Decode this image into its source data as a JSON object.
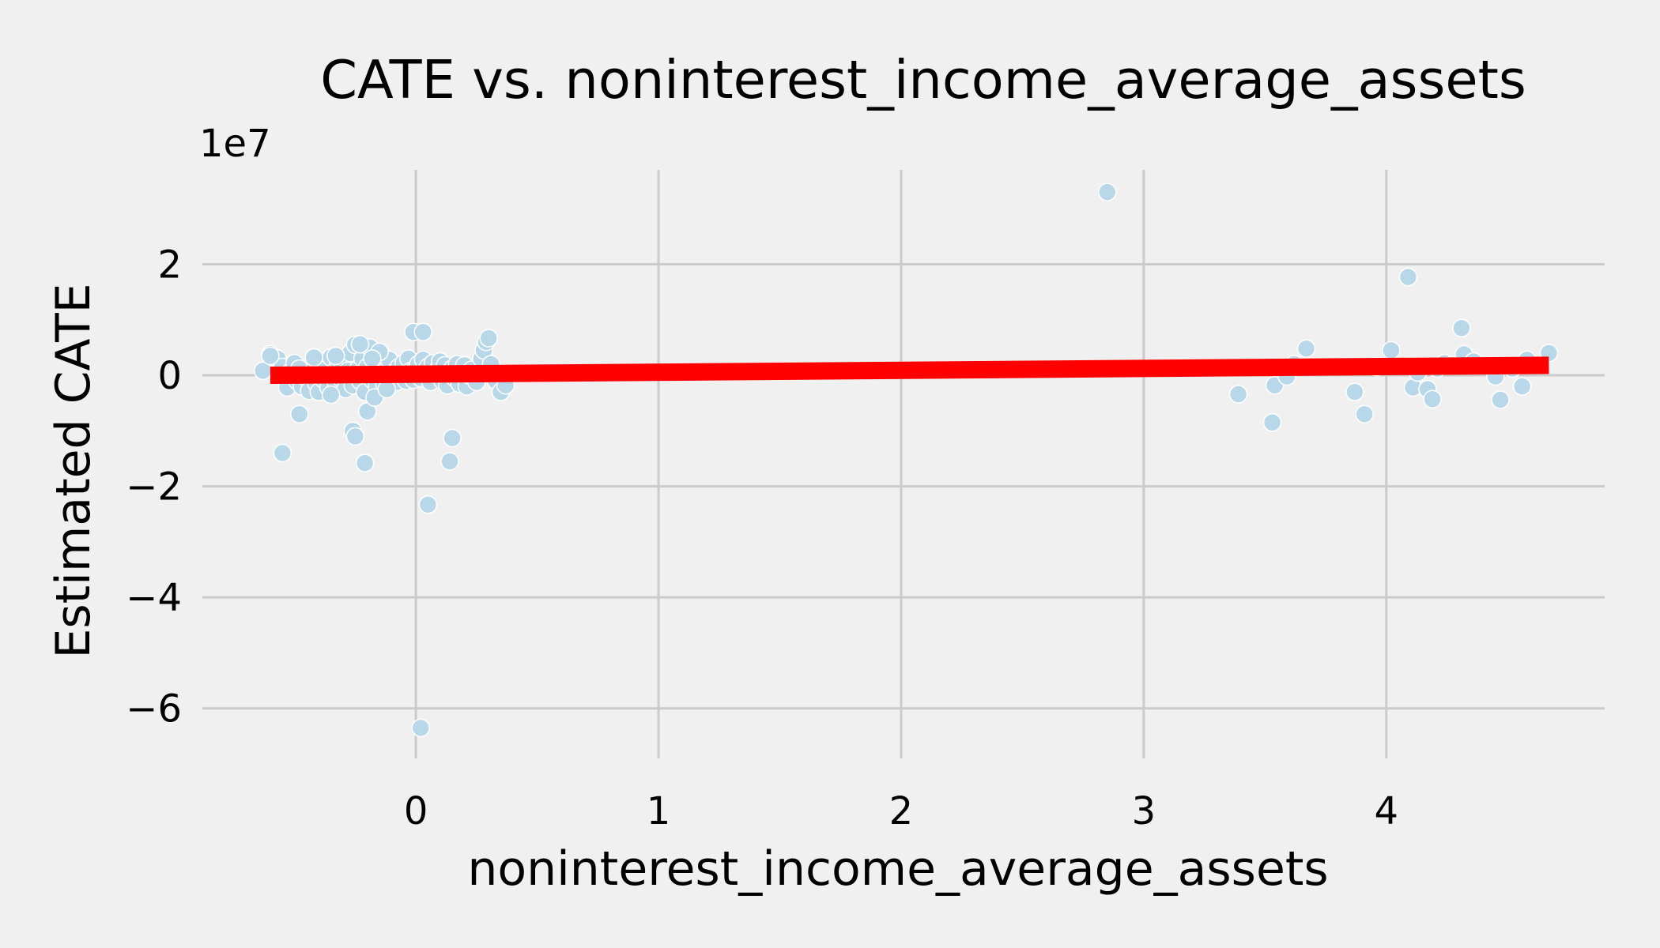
{
  "chart_data": {
    "type": "scatter",
    "title": "CATE vs. noninterest_income_average_assets",
    "xlabel": "noninterest_income_average_assets",
    "ylabel": "Estimated CATE",
    "y_offset_label": "1e7",
    "xlim": [
      -0.88,
      4.9
    ],
    "ylim": [
      -6.9,
      3.7
    ],
    "xticks": [
      0,
      1,
      2,
      3,
      4
    ],
    "xtick_labels": [
      "0",
      "1",
      "2",
      "3",
      "4"
    ],
    "yticks": [
      2,
      0,
      -2,
      -4,
      -6
    ],
    "ytick_labels": [
      "2",
      "0",
      "−2",
      "−4",
      "−6"
    ],
    "grid": true,
    "colors": {
      "points": "#b8d8ea",
      "fit_line": "#ff0000",
      "background": "#f0f0f0",
      "grid": "#cbcbcb"
    },
    "series": [
      {
        "points": [
          [
            -0.63,
            0.08
          ],
          [
            -0.6,
            0.38
          ],
          [
            -0.57,
            0.3
          ],
          [
            -0.55,
            0.15
          ],
          [
            -0.53,
            -0.22
          ],
          [
            -0.52,
            0.05
          ],
          [
            -0.5,
            0.22
          ],
          [
            -0.49,
            -0.1
          ],
          [
            -0.48,
            0.12
          ],
          [
            -0.47,
            -0.2
          ],
          [
            -0.45,
            -0.05
          ],
          [
            -0.44,
            -0.28
          ],
          [
            -0.43,
            0.02
          ],
          [
            -0.42,
            0.1
          ],
          [
            -0.41,
            -0.15
          ],
          [
            -0.4,
            -0.3
          ],
          [
            -0.39,
            0.2
          ],
          [
            -0.38,
            -0.08
          ],
          [
            -0.37,
            0.12
          ],
          [
            -0.36,
            -0.22
          ],
          [
            -0.35,
            0.32
          ],
          [
            -0.34,
            0.05
          ],
          [
            -0.33,
            -0.12
          ],
          [
            -0.32,
            0.25
          ],
          [
            -0.31,
            -0.05
          ],
          [
            -0.3,
            0.18
          ],
          [
            -0.29,
            -0.25
          ],
          [
            -0.28,
            0.08
          ],
          [
            -0.27,
            0.4
          ],
          [
            -0.26,
            -0.18
          ],
          [
            -0.25,
            0.55
          ],
          [
            -0.24,
            0.1
          ],
          [
            -0.23,
            -0.1
          ],
          [
            -0.22,
            0.3
          ],
          [
            -0.21,
            -0.3
          ],
          [
            -0.2,
            0.15
          ],
          [
            -0.19,
            0.5
          ],
          [
            -0.18,
            -0.08
          ],
          [
            -0.17,
            0.22
          ],
          [
            -0.16,
            -0.2
          ],
          [
            -0.15,
            0.02
          ],
          [
            -0.14,
            0.38
          ],
          [
            -0.13,
            -0.15
          ],
          [
            -0.12,
            0.1
          ],
          [
            -0.11,
            0.28
          ],
          [
            -0.1,
            -0.05
          ],
          [
            -0.09,
            0.05
          ],
          [
            -0.08,
            -0.12
          ],
          [
            -0.07,
            0.15
          ],
          [
            -0.06,
            0.0
          ],
          [
            -0.05,
            0.22
          ],
          [
            -0.04,
            -0.1
          ],
          [
            -0.03,
            0.3
          ],
          [
            -0.02,
            0.08
          ],
          [
            -0.01,
            -0.08
          ],
          [
            0.0,
            0.12
          ],
          [
            0.01,
            0.2
          ],
          [
            0.02,
            -0.05
          ],
          [
            0.03,
            0.28
          ],
          [
            0.04,
            0.05
          ],
          [
            0.05,
            0.15
          ],
          [
            0.06,
            -0.12
          ],
          [
            0.07,
            0.22
          ],
          [
            0.08,
            0.02
          ],
          [
            0.09,
            0.1
          ],
          [
            0.1,
            0.25
          ],
          [
            0.11,
            -0.1
          ],
          [
            0.12,
            0.18
          ],
          [
            0.13,
            -0.18
          ],
          [
            0.14,
            0.05
          ],
          [
            0.15,
            0.12
          ],
          [
            0.16,
            -0.05
          ],
          [
            0.17,
            0.2
          ],
          [
            0.18,
            -0.15
          ],
          [
            0.19,
            0.08
          ],
          [
            0.2,
            0.18
          ],
          [
            0.21,
            -0.2
          ],
          [
            0.22,
            0.0
          ],
          [
            0.23,
            0.1
          ],
          [
            0.25,
            -0.12
          ],
          [
            0.27,
            0.3
          ],
          [
            0.28,
            0.45
          ],
          [
            0.29,
            0.6
          ],
          [
            0.3,
            0.67
          ],
          [
            0.31,
            0.2
          ],
          [
            0.33,
            -0.1
          ],
          [
            0.35,
            -0.3
          ],
          [
            0.37,
            -0.18
          ],
          [
            -0.6,
            0.35
          ],
          [
            -0.48,
            -0.7
          ],
          [
            -0.55,
            -1.4
          ],
          [
            -0.26,
            -1.0
          ],
          [
            -0.25,
            -1.1
          ],
          [
            -0.2,
            -0.65
          ],
          [
            -0.21,
            -1.58
          ],
          [
            -0.17,
            -0.4
          ],
          [
            -0.15,
            0.42
          ],
          [
            -0.33,
            0.35
          ],
          [
            -0.23,
            0.56
          ],
          [
            -0.01,
            0.78
          ],
          [
            0.03,
            0.78
          ],
          [
            0.14,
            -1.55
          ],
          [
            0.15,
            -1.13
          ],
          [
            0.05,
            -2.33
          ],
          [
            0.02,
            -6.35
          ],
          [
            -0.18,
            0.3
          ],
          [
            -0.35,
            -0.35
          ],
          [
            -0.42,
            0.32
          ],
          [
            -0.12,
            -0.25
          ],
          [
            2.85,
            3.3
          ],
          [
            3.39,
            -0.34
          ],
          [
            3.53,
            -0.85
          ],
          [
            3.54,
            -0.18
          ],
          [
            3.59,
            -0.02
          ],
          [
            3.62,
            0.2
          ],
          [
            3.67,
            0.48
          ],
          [
            3.87,
            -0.3
          ],
          [
            3.91,
            -0.7
          ],
          [
            3.96,
            0.15
          ],
          [
            4.02,
            0.45
          ],
          [
            4.09,
            1.77
          ],
          [
            4.11,
            -0.22
          ],
          [
            4.13,
            0.05
          ],
          [
            4.17,
            -0.25
          ],
          [
            4.19,
            -0.43
          ],
          [
            4.21,
            0.12
          ],
          [
            4.24,
            0.22
          ],
          [
            4.27,
            0.18
          ],
          [
            4.31,
            0.85
          ],
          [
            4.32,
            0.38
          ],
          [
            4.36,
            0.25
          ],
          [
            4.45,
            -0.02
          ],
          [
            4.47,
            -0.44
          ],
          [
            4.52,
            0.12
          ],
          [
            4.56,
            -0.2
          ],
          [
            4.58,
            0.28
          ],
          [
            4.67,
            0.4
          ]
        ]
      }
    ],
    "fit_line": {
      "x": [
        -0.6,
        4.67
      ],
      "y": [
        0.0,
        0.18
      ]
    }
  }
}
